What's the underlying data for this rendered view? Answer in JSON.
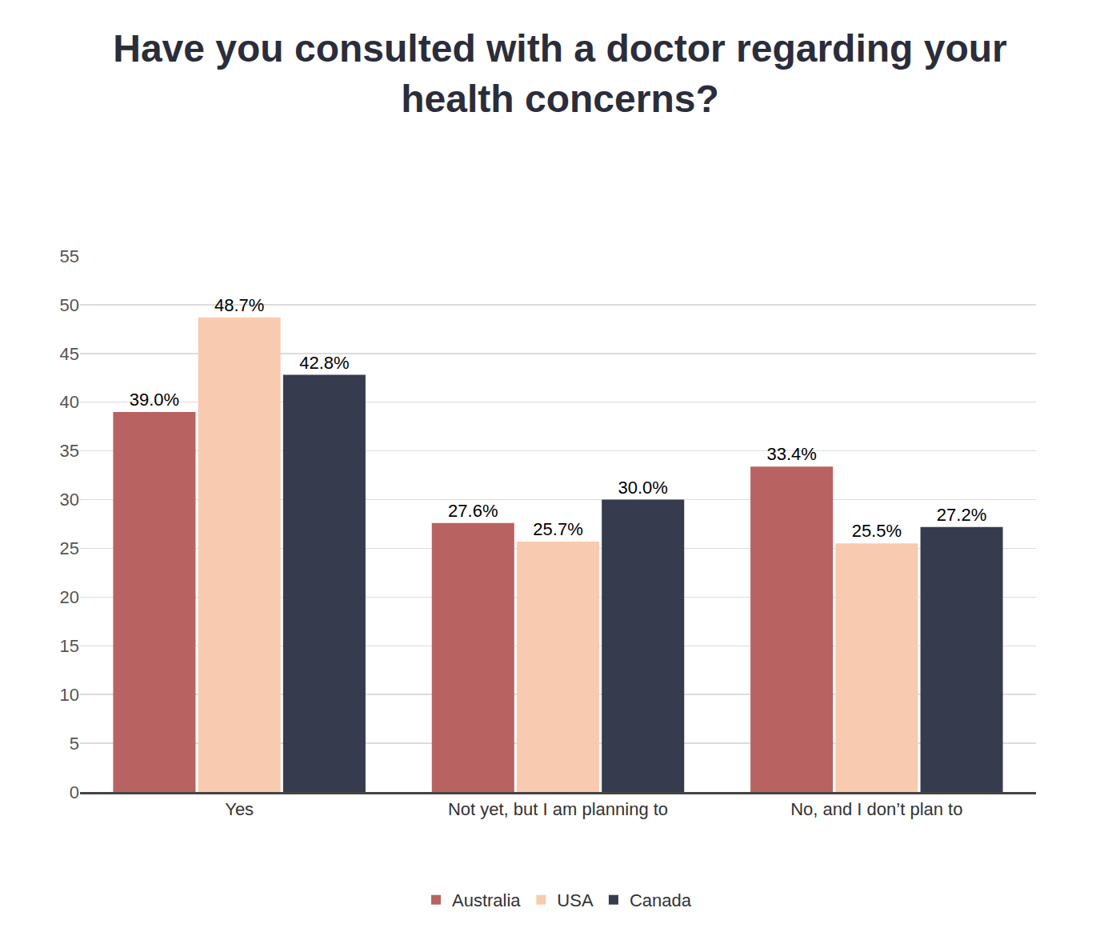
{
  "chart_data": {
    "type": "bar",
    "title": "Have you consulted with a doctor regarding your health concerns?",
    "categories": [
      "Yes",
      "Not yet, but I am planning to",
      "No, and I don’t plan to"
    ],
    "series": [
      {
        "name": "Australia",
        "color": "#b86361",
        "values": [
          39.0,
          27.6,
          33.4
        ],
        "value_labels": [
          "39.0%",
          "27.6%",
          "33.4%"
        ]
      },
      {
        "name": "USA",
        "color": "#f8cbb0",
        "values": [
          48.7,
          25.7,
          25.5
        ],
        "value_labels": [
          "48.7%",
          "25.7%",
          "25.5%"
        ]
      },
      {
        "name": "Canada",
        "color": "#363b4e",
        "values": [
          42.8,
          30.0,
          27.2
        ],
        "value_labels": [
          "42.8%",
          "30.0%",
          "27.2%"
        ]
      }
    ],
    "ylim": [
      0,
      55
    ],
    "yticks": [
      0,
      5,
      10,
      15,
      20,
      25,
      30,
      35,
      40,
      45,
      50,
      55
    ],
    "grid": true,
    "legend": "bottom",
    "data_labels": true
  }
}
